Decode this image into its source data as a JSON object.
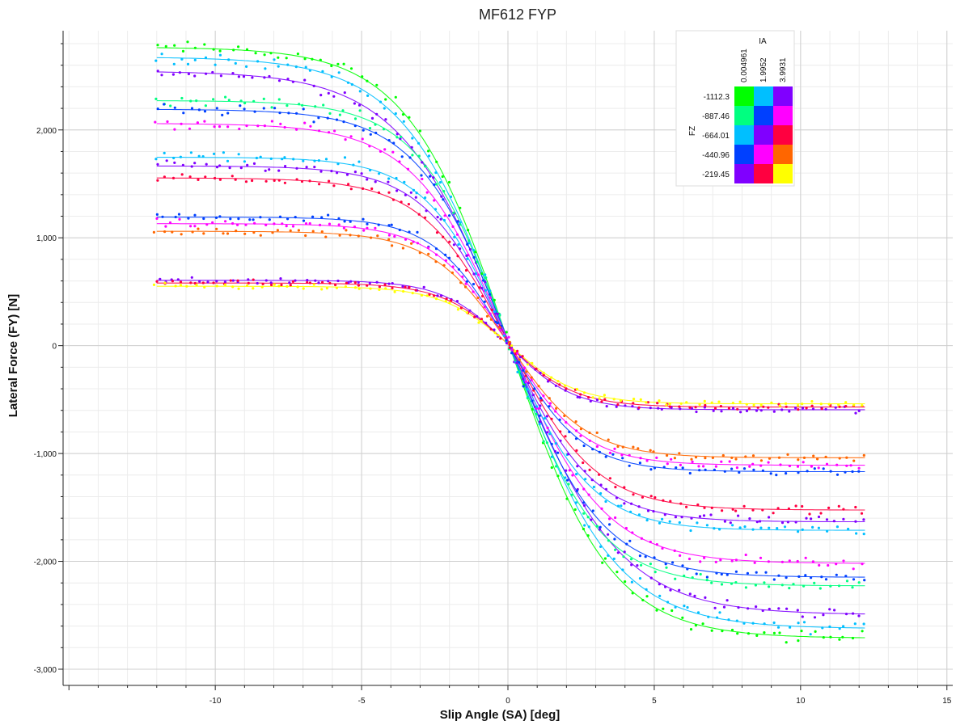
{
  "chart_data": {
    "type": "scatter",
    "title": "MF612 FYP",
    "xlabel": "Slip Angle (SA) [deg]",
    "ylabel": "Lateral Force (FY) [N]",
    "xlim": [
      -15.2,
      15.2
    ],
    "ylim": [
      -3150,
      2920
    ],
    "x_ticks": [
      -10,
      -5,
      0,
      5,
      10,
      15
    ],
    "x_tick_labels": [
      "-10",
      "-5",
      "0",
      "5",
      "10",
      "15"
    ],
    "y_ticks": [
      -3000,
      -2000,
      -1000,
      0,
      1000,
      2000
    ],
    "y_tick_labels": [
      "-3,000",
      "-2,000",
      "-1,000",
      "0",
      "1,000",
      "2,000"
    ],
    "grid": true,
    "legend": {
      "placement": "top-right",
      "col_title": "IA",
      "row_title": "FZ",
      "ia_values": [
        "0.004961",
        "1.9952",
        "3.9931"
      ],
      "fz_values": [
        "-1112.3",
        "-887.46",
        "-664.01",
        "-440.96",
        "-219.45"
      ],
      "colors": [
        [
          "#00ff00",
          "#00bfff",
          "#8000ff"
        ],
        [
          "#00ff80",
          "#0040ff",
          "#ff00ff"
        ],
        [
          "#00bfff",
          "#8000ff",
          "#ff0040"
        ],
        [
          "#0040ff",
          "#ff00ff",
          "#ff6600"
        ],
        [
          "#8000ff",
          "#ff0040",
          "#ffff00"
        ]
      ]
    },
    "x_range_data": [
      -12,
      12.2
    ],
    "series": [
      {
        "fz": "-1112.3",
        "ia": "0.004961",
        "color": "#00ff00",
        "peak": 2740,
        "stiffness": 0.29,
        "shift": 0.1
      },
      {
        "fz": "-1112.3",
        "ia": "1.9952",
        "color": "#00bfff",
        "peak": 2650,
        "stiffness": 0.28,
        "shift": 0.15
      },
      {
        "fz": "-1112.3",
        "ia": "3.9931",
        "color": "#8000ff",
        "peak": 2520,
        "stiffness": 0.27,
        "shift": 0.2
      },
      {
        "fz": "-887.46",
        "ia": "0.004961",
        "color": "#00ff80",
        "peak": 2250,
        "stiffness": 0.33,
        "shift": 0.1
      },
      {
        "fz": "-887.46",
        "ia": "1.9952",
        "color": "#0040ff",
        "peak": 2170,
        "stiffness": 0.32,
        "shift": 0.15
      },
      {
        "fz": "-887.46",
        "ia": "3.9931",
        "color": "#ff00ff",
        "peak": 2040,
        "stiffness": 0.31,
        "shift": 0.2
      },
      {
        "fz": "-664.01",
        "ia": "0.004961",
        "color": "#00bfff",
        "peak": 1730,
        "stiffness": 0.36,
        "shift": 0.1
      },
      {
        "fz": "-664.01",
        "ia": "1.9952",
        "color": "#8000ff",
        "peak": 1650,
        "stiffness": 0.35,
        "shift": 0.15
      },
      {
        "fz": "-664.01",
        "ia": "3.9931",
        "color": "#ff0040",
        "peak": 1540,
        "stiffness": 0.34,
        "shift": 0.2
      },
      {
        "fz": "-440.96",
        "ia": "0.004961",
        "color": "#0040ff",
        "peak": 1180,
        "stiffness": 0.4,
        "shift": 0.1
      },
      {
        "fz": "-440.96",
        "ia": "1.9952",
        "color": "#ff00ff",
        "peak": 1120,
        "stiffness": 0.39,
        "shift": 0.15
      },
      {
        "fz": "-440.96",
        "ia": "3.9931",
        "color": "#ff6600",
        "peak": 1050,
        "stiffness": 0.38,
        "shift": 0.2
      },
      {
        "fz": "-219.45",
        "ia": "0.004961",
        "color": "#8000ff",
        "peak": 600,
        "stiffness": 0.45,
        "shift": 0.1
      },
      {
        "fz": "-219.45",
        "ia": "1.9952",
        "color": "#ff0040",
        "peak": 575,
        "stiffness": 0.44,
        "shift": 0.15
      },
      {
        "fz": "-219.45",
        "ia": "3.9931",
        "color": "#ffff00",
        "peak": 545,
        "stiffness": 0.43,
        "shift": 0.2
      }
    ]
  }
}
